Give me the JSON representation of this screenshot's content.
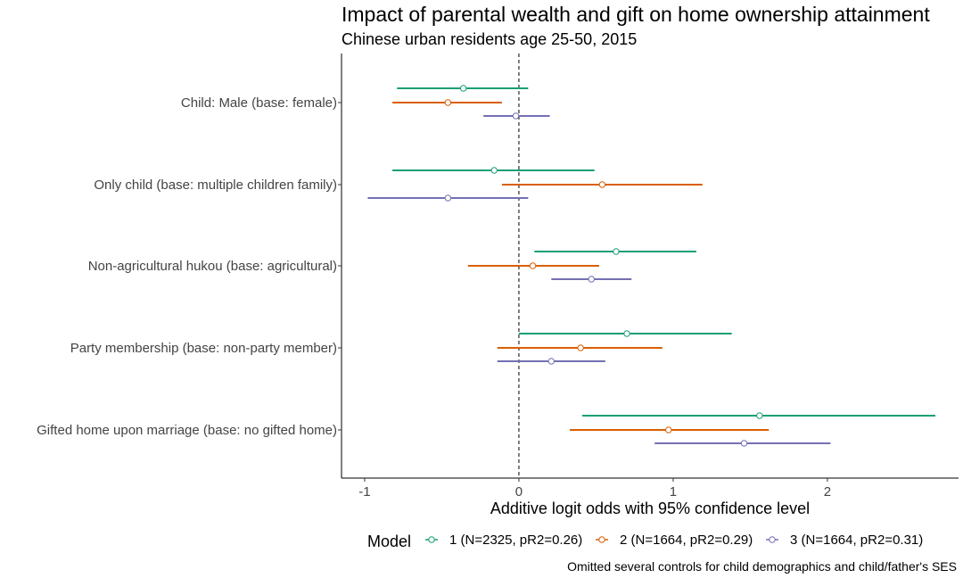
{
  "chart_data": {
    "type": "dot-whisker",
    "title": "Impact of parental wealth and gift on home ownership attainment",
    "subtitle": "Chinese urban residents age 25-50, 2015",
    "xlabel": "Additive logit odds with 95% confidence level",
    "ylabel": "",
    "xlim": [
      -1.15,
      2.85
    ],
    "x_ticks": [
      -1,
      0,
      1,
      2
    ],
    "x_tick_labels": [
      "-1",
      "0",
      "1",
      "2"
    ],
    "reference_line": 0,
    "grid": false,
    "legend_title": "Model",
    "legend_position": "bottom",
    "caption": "Omitted several controls for child demographics and child/father's SES",
    "categories": [
      "Child: Male (base: female)",
      "Only child (base: multiple children family)",
      "Non-agricultural hukou (base: agricultural)",
      "Party membership (base: non-party member)",
      "Gifted home upon marriage (base: no gifted home)"
    ],
    "series": [
      {
        "name": "1 (N=2325, pR2=0.26)",
        "color": "#1b9e77",
        "estimates": [
          -0.36,
          -0.16,
          0.63,
          0.7,
          1.56
        ],
        "lower": [
          -0.79,
          -0.82,
          0.1,
          0.0,
          0.41
        ],
        "upper": [
          0.06,
          0.49,
          1.15,
          1.38,
          2.7
        ]
      },
      {
        "name": "2 (N=1664, pR2=0.29)",
        "color": "#d95f02",
        "estimates": [
          -0.46,
          0.54,
          0.09,
          0.4,
          0.97
        ],
        "lower": [
          -0.82,
          -0.11,
          -0.33,
          -0.14,
          0.33
        ],
        "upper": [
          -0.11,
          1.19,
          0.52,
          0.93,
          1.62
        ]
      },
      {
        "name": "3 (N=1664, pR2=0.31)",
        "color": "#7570b3",
        "estimates": [
          -0.02,
          -0.46,
          0.47,
          0.21,
          1.46
        ],
        "lower": [
          -0.23,
          -0.98,
          0.21,
          -0.14,
          0.88
        ],
        "upper": [
          0.2,
          0.06,
          0.73,
          0.56,
          2.02
        ]
      }
    ]
  }
}
